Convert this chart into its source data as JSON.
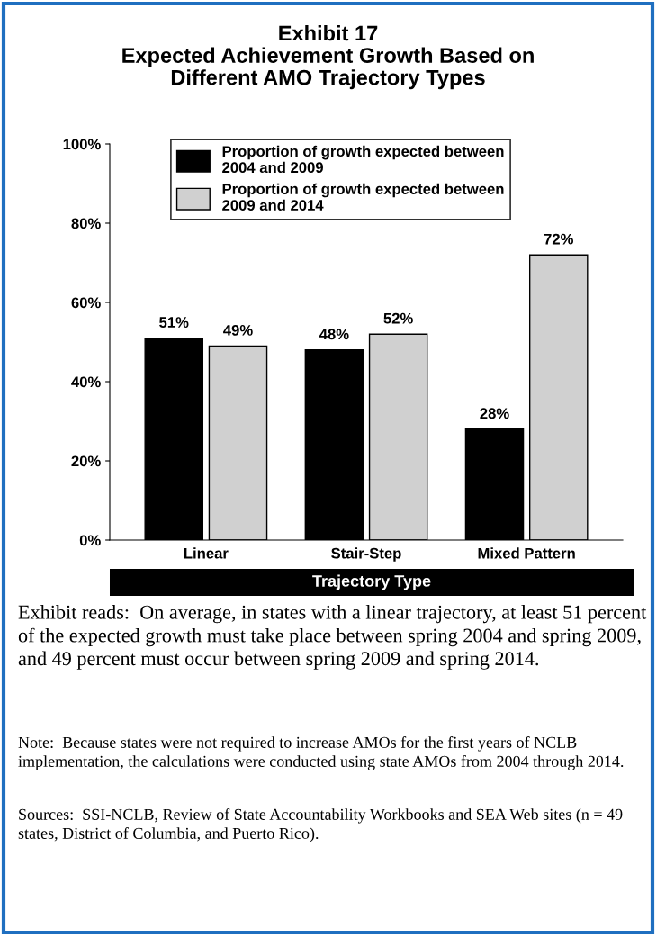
{
  "chart_data": {
    "type": "bar",
    "title": "Exhibit 17\nExpected Achievement Growth Based on\nDifferent AMO Trajectory Types",
    "xlabel": "Trajectory Type",
    "categories": [
      "Linear",
      "Stair-Step",
      "Mixed Pattern"
    ],
    "series": [
      {
        "name": "Proportion of growth expected between\n2004 and 2009",
        "color": "#000000",
        "values": [
          51,
          48,
          28
        ],
        "value_labels": [
          "51%",
          "48%",
          "28%"
        ]
      },
      {
        "name": "Proportion of growth expected between\n2009 and 2014",
        "color": "#d0d0d0",
        "values": [
          49,
          52,
          72
        ],
        "value_labels": [
          "49%",
          "52%",
          "72%"
        ]
      }
    ],
    "ylim": [
      0,
      100
    ],
    "yticks": [
      {
        "value": 0,
        "label": "0%"
      },
      {
        "value": 20,
        "label": "20%"
      },
      {
        "value": 40,
        "label": "40%"
      },
      {
        "value": 60,
        "label": "60%"
      },
      {
        "value": 80,
        "label": "80%"
      },
      {
        "value": 100,
        "label": "100%"
      }
    ],
    "legend": "top",
    "grid": false,
    "annotations": [
      "Exhibit reads:  On average, in states with a linear trajectory, at least 51 percent of the expected growth must take place between spring 2004 and spring 2009, and 49 percent must occur between spring 2009 and spring 2014.",
      "Note:  Because states were not required to increase AMOs for the first years of NCLB implementation, the calculations were conducted using state AMOs from 2004 through 2014.",
      "Sources:  SSI-NCLB, Review of State Accountability Workbooks and SEA Web sites (n = 49 states, District of Columbia, and Puerto Rico)."
    ]
  }
}
